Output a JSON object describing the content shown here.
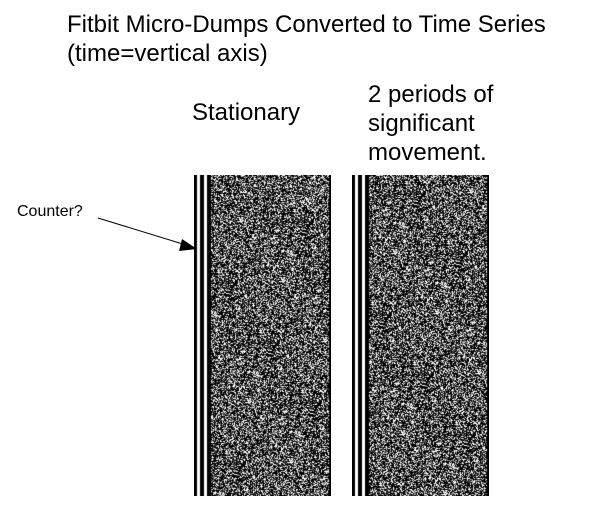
{
  "title_line1": "Fitbit Micro-Dumps Converted to Time Series",
  "title_line2": "(time=vertical axis)",
  "columns": [
    {
      "label": "Stationary"
    },
    {
      "label": "2 periods of\nsignificant\nmovement."
    }
  ],
  "annotation": {
    "label": "Counter?"
  }
}
